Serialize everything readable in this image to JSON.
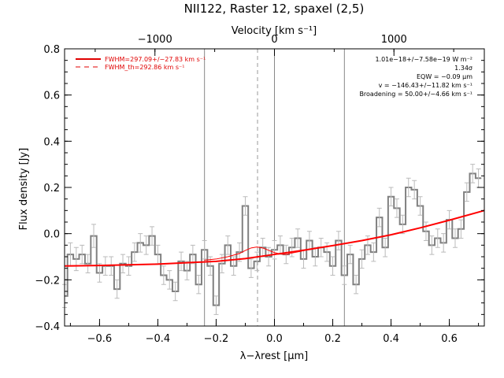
{
  "chart_data": {
    "type": "line",
    "title": "NII122, Raster 12, spaxel (2,5)",
    "xlabel": "λ−λrest [μm]",
    "ylabel": "Flux density [Jy]",
    "top_axis_label": "Velocity [km s⁻¹]",
    "xlim": [
      -0.72,
      0.72
    ],
    "ylim": [
      -0.4,
      0.8
    ],
    "x_ticks": [
      -0.6,
      -0.4,
      -0.2,
      0.0,
      0.2,
      0.4,
      0.6
    ],
    "x_tick_labels": [
      "−0.6",
      "−0.4",
      "−0.2",
      "0.0",
      "0.2",
      "0.4",
      "0.6"
    ],
    "y_ticks": [
      -0.4,
      -0.2,
      0.0,
      0.2,
      0.4,
      0.6,
      0.8
    ],
    "y_tick_labels": [
      "−0.4",
      "−0.2",
      "0.0",
      "0.2",
      "0.4",
      "0.6",
      "0.8"
    ],
    "top_ticks_x": [
      -0.41,
      0.0,
      0.41
    ],
    "top_tick_labels": [
      "−1000",
      "0",
      "1000"
    ],
    "vlines_solid": [
      -0.24,
      0.0,
      0.24
    ],
    "vline_dashed": -0.058,
    "legend": [
      {
        "label": "FWHM=297.09+/−27.83 km s⁻¹",
        "style": "solid",
        "color": "#e00000"
      },
      {
        "label": "FWHM_th=292.86 km s⁻¹",
        "style": "dashed",
        "color": "#e00000"
      }
    ],
    "annotations": [
      "1.01e−18+/−7.58e−19 W m⁻²",
      "1.34σ",
      "EQW = −0.09 μm",
      "v = −146.43+/−11.82 km s⁻¹",
      "Broadening = 50.00+/−4.66 km s⁻¹"
    ],
    "series": [
      {
        "kind": "spectrum",
        "color": "#808080",
        "x": [
          -0.72,
          -0.7,
          -0.68,
          -0.66,
          -0.64,
          -0.62,
          -0.6,
          -0.58,
          -0.56,
          -0.54,
          -0.52,
          -0.5,
          -0.48,
          -0.46,
          -0.44,
          -0.42,
          -0.4,
          -0.38,
          -0.36,
          -0.34,
          -0.32,
          -0.3,
          -0.28,
          -0.26,
          -0.24,
          -0.22,
          -0.2,
          -0.18,
          -0.16,
          -0.14,
          -0.12,
          -0.1,
          -0.08,
          -0.06,
          -0.04,
          -0.02,
          0.0,
          0.02,
          0.04,
          0.06,
          0.08,
          0.1,
          0.12,
          0.14,
          0.16,
          0.18,
          0.2,
          0.22,
          0.24,
          0.26,
          0.28,
          0.3,
          0.32,
          0.34,
          0.36,
          0.38,
          0.4,
          0.42,
          0.44,
          0.46,
          0.48,
          0.5,
          0.52,
          0.54,
          0.56,
          0.58,
          0.6,
          0.62,
          0.64,
          0.66,
          0.68,
          0.7
        ],
        "y": [
          -0.27,
          -0.09,
          -0.11,
          -0.09,
          -0.13,
          -0.01,
          -0.17,
          -0.14,
          -0.14,
          -0.24,
          -0.13,
          -0.14,
          -0.08,
          -0.04,
          -0.05,
          -0.01,
          -0.09,
          -0.18,
          -0.2,
          -0.25,
          -0.12,
          -0.16,
          -0.09,
          -0.22,
          -0.07,
          -0.14,
          -0.31,
          -0.13,
          -0.05,
          -0.14,
          -0.08,
          0.12,
          -0.15,
          -0.12,
          -0.06,
          -0.1,
          -0.07,
          -0.05,
          -0.09,
          -0.06,
          -0.02,
          -0.11,
          -0.03,
          -0.1,
          -0.06,
          -0.08,
          -0.14,
          -0.03,
          -0.18,
          -0.09,
          -0.22,
          -0.11,
          -0.05,
          -0.08,
          0.07,
          -0.06,
          0.16,
          0.11,
          0.04,
          0.2,
          0.19,
          0.12,
          0.01,
          -0.05,
          -0.02,
          -0.04,
          0.06,
          -0.02,
          0.02,
          0.18,
          0.26,
          0.24
        ],
        "err": [
          0.05,
          0.05,
          0.05,
          0.04,
          0.04,
          0.05,
          0.04,
          0.04,
          0.04,
          0.04,
          0.04,
          0.04,
          0.04,
          0.04,
          0.04,
          0.04,
          0.04,
          0.04,
          0.04,
          0.04,
          0.04,
          0.04,
          0.04,
          0.04,
          0.04,
          0.04,
          0.04,
          0.04,
          0.04,
          0.04,
          0.04,
          0.04,
          0.04,
          0.04,
          0.04,
          0.04,
          0.04,
          0.04,
          0.04,
          0.04,
          0.04,
          0.04,
          0.04,
          0.04,
          0.04,
          0.04,
          0.04,
          0.04,
          0.04,
          0.04,
          0.04,
          0.04,
          0.04,
          0.04,
          0.04,
          0.04,
          0.04,
          0.04,
          0.04,
          0.04,
          0.04,
          0.04,
          0.04,
          0.04,
          0.04,
          0.04,
          0.04,
          0.04,
          0.04,
          0.04,
          0.04,
          0.04
        ]
      },
      {
        "kind": "baseline-fit",
        "color": "#ff0000",
        "x": [
          -0.72,
          -0.6,
          -0.4,
          -0.2,
          -0.1,
          0.0,
          0.1,
          0.2,
          0.3,
          0.4,
          0.5,
          0.6,
          0.72
        ],
        "y": [
          -0.14,
          -0.138,
          -0.132,
          -0.12,
          -0.108,
          -0.09,
          -0.072,
          -0.052,
          -0.03,
          -0.005,
          0.025,
          0.058,
          0.1
        ]
      },
      {
        "kind": "line-fit",
        "color": "#ff0000",
        "x": [
          -0.24,
          -0.2,
          -0.16,
          -0.12,
          -0.1,
          -0.08,
          -0.06,
          -0.04,
          -0.02,
          0.0,
          0.02,
          0.04,
          0.06,
          0.08,
          0.12
        ],
        "y": [
          -0.115,
          -0.11,
          -0.1,
          -0.086,
          -0.073,
          -0.062,
          -0.058,
          -0.062,
          -0.072,
          -0.082,
          -0.088,
          -0.09,
          -0.084,
          -0.079,
          -0.069
        ]
      }
    ]
  }
}
